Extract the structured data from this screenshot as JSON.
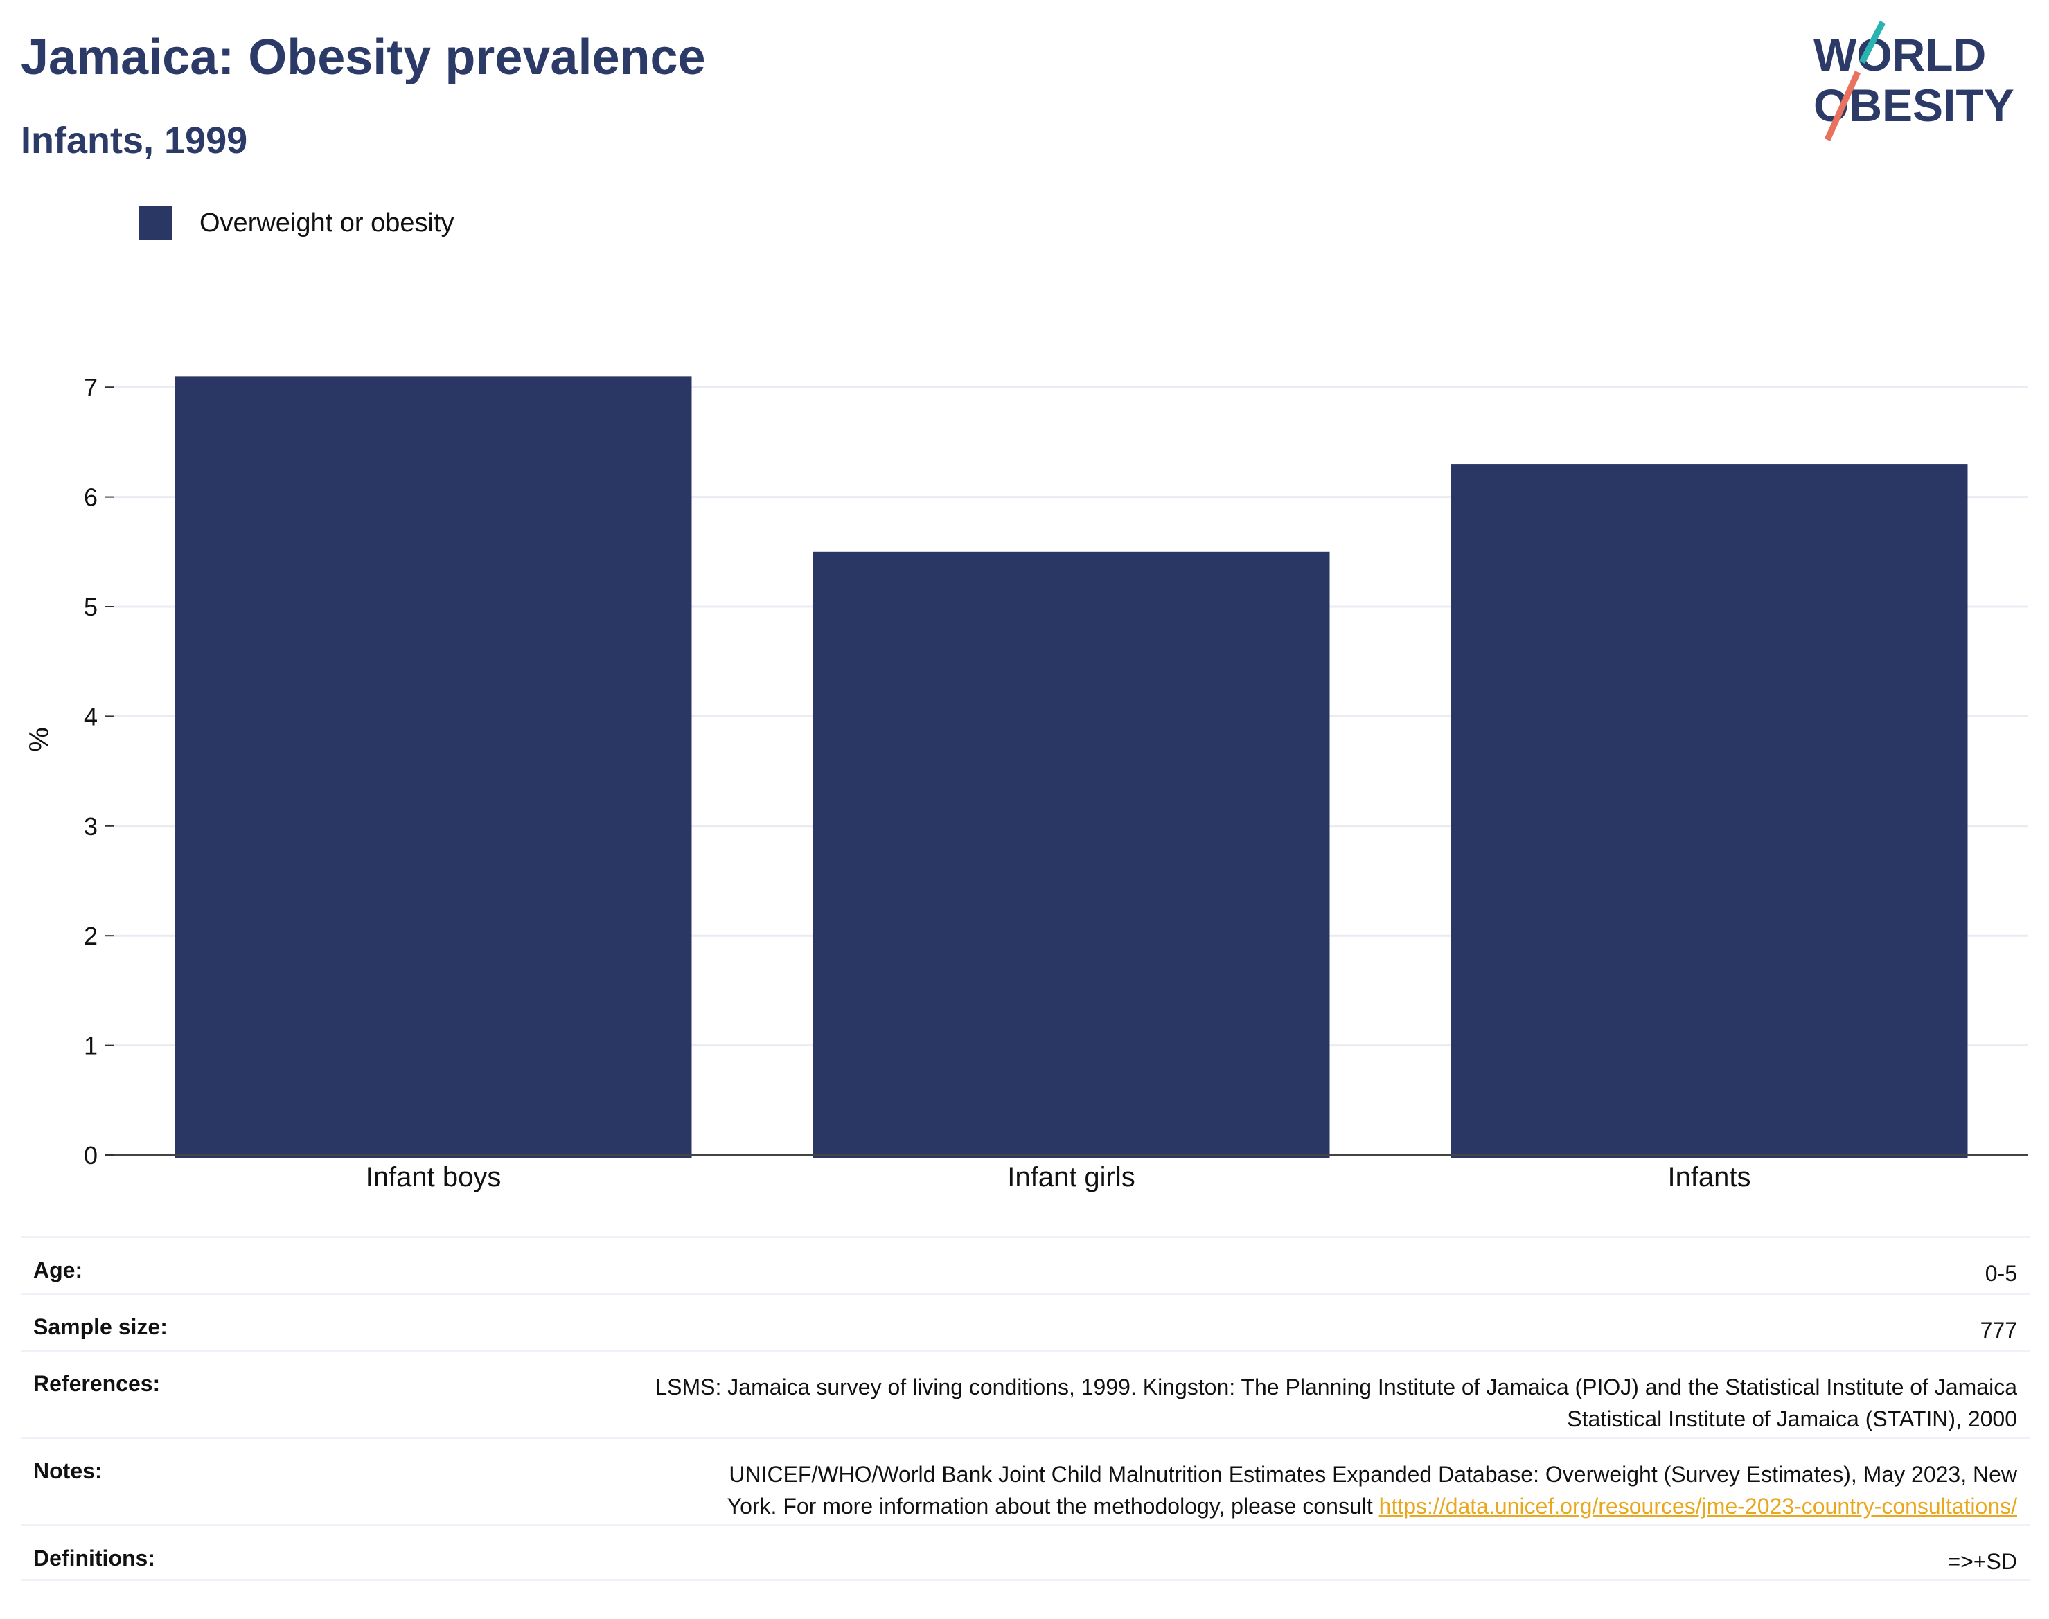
{
  "header": {
    "title": "Jamaica: Obesity prevalence",
    "subtitle": "Infants, 1999"
  },
  "logo": {
    "line1": "WORLD",
    "line2": "OBESITY"
  },
  "legend": {
    "label": "Overweight or obesity",
    "color": "#2a3663"
  },
  "chart_data": {
    "type": "bar",
    "categories": [
      "Infant boys",
      "Infant girls",
      "Infants"
    ],
    "series": [
      {
        "name": "Overweight or obesity",
        "values": [
          7.1,
          5.5,
          6.3
        ]
      }
    ],
    "title": "Jamaica: Obesity prevalence",
    "subtitle": "Infants, 1999",
    "xlabel": "",
    "ylabel": "%",
    "ylim": [
      0,
      7.5
    ],
    "yticks": [
      0,
      1,
      2,
      3,
      4,
      5,
      6,
      7
    ],
    "grid": true,
    "legend_position": "top-left",
    "bar_color": "#2a3663"
  },
  "info": {
    "age_label": "Age:",
    "age_value": "0-5",
    "sample_label": "Sample size:",
    "sample_value": "777",
    "references_label": "References:",
    "references_line1": "LSMS: Jamaica survey of living conditions, 1999. Kingston: The Planning Institute of Jamaica (PIOJ) and the Statistical Institute of Jamaica",
    "references_line2": "Statistical Institute of Jamaica (STATIN), 2000",
    "notes_label": "Notes:",
    "notes_line1": "UNICEF/WHO/World Bank Joint Child Malnutrition Estimates Expanded Database: Overweight (Survey Estimates), May 2023, New",
    "notes_line2_prefix": "York. For more information about the methodology, please consult ",
    "notes_link": "https://data.unicef.org/resources/jme-2023-country-consultations/",
    "definitions_label": "Definitions:",
    "definitions_value": "=>+SD"
  }
}
